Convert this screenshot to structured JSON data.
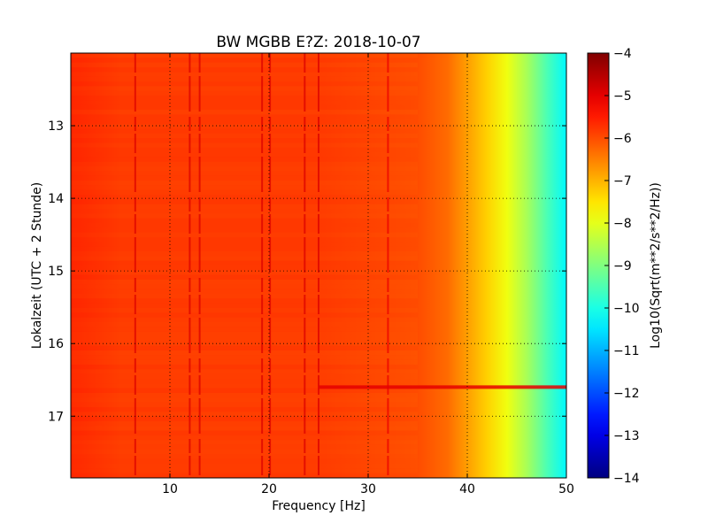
{
  "chart_data": {
    "type": "heatmap",
    "title": "BW MGBB E?Z: 2018-10-07",
    "xlabel": "Frequency [Hz]",
    "ylabel": "Lokalzeit (UTC + 2 Stunde)",
    "xlim": [
      0,
      50
    ],
    "ylim": [
      17.85,
      12.0
    ],
    "y_inverted": true,
    "x_ticks": [
      10,
      20,
      30,
      40,
      50
    ],
    "y_ticks": [
      13,
      14,
      15,
      16,
      17
    ],
    "grid": true,
    "grid_style": "dotted",
    "colorscale": "jet",
    "colorbar": {
      "label": "Log10(Sqrt(m**2/s**2/Hz))",
      "range": [
        -14,
        -4
      ],
      "ticks": [
        -4,
        -5,
        -6,
        -7,
        -8,
        -9,
        -10,
        -11,
        -12,
        -13,
        -14
      ]
    },
    "spectrum_profile": {
      "frequency_hz": [
        0,
        5,
        10,
        15,
        20,
        25,
        30,
        35,
        38,
        40,
        42,
        44,
        46,
        48,
        50
      ],
      "log10_amplitude": [
        -5.6,
        -5.8,
        -5.8,
        -5.8,
        -5.8,
        -5.8,
        -5.9,
        -6.0,
        -6.3,
        -6.8,
        -7.3,
        -7.9,
        -8.6,
        -9.5,
        -10.3
      ]
    },
    "spectral_lines_hz": [
      6.5,
      12.0,
      13.0,
      19.3,
      20.1,
      23.6,
      25.0,
      32.0
    ],
    "events": [
      {
        "frequency_range_hz": [
          25,
          50
        ],
        "time": 16.6,
        "log10_amplitude": -5.0
      }
    ]
  }
}
